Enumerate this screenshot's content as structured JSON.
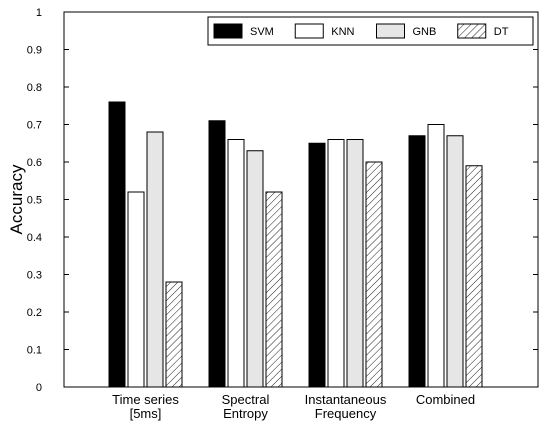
{
  "chart_data": {
    "type": "bar",
    "categories": [
      [
        "Time series",
        "[5ms]"
      ],
      [
        "Spectral",
        "Entropy"
      ],
      [
        "Instantaneous",
        "Frequency"
      ],
      [
        "Combined"
      ]
    ],
    "series": [
      {
        "name": "SVM",
        "values": [
          0.76,
          0.71,
          0.65,
          0.67
        ],
        "fill": "#000000",
        "pattern": "solid"
      },
      {
        "name": "KNN",
        "values": [
          0.52,
          0.66,
          0.66,
          0.7
        ],
        "fill": "#ffffff",
        "pattern": "solid"
      },
      {
        "name": "GNB",
        "values": [
          0.68,
          0.63,
          0.66,
          0.67
        ],
        "fill": "#e6e6e6",
        "pattern": "solid"
      },
      {
        "name": "DT",
        "values": [
          0.28,
          0.52,
          0.6,
          0.59
        ],
        "fill": "#ffffff",
        "pattern": "hatch"
      }
    ],
    "xlabel": "",
    "ylabel": "Accuracy",
    "ylim": [
      0,
      1
    ],
    "yticks": [
      "0",
      "0.1",
      "0.2",
      "0.3",
      "0.4",
      "0.5",
      "0.6",
      "0.7",
      "0.8",
      "0.9",
      "1"
    ],
    "grid": false,
    "legend": "top-right"
  }
}
